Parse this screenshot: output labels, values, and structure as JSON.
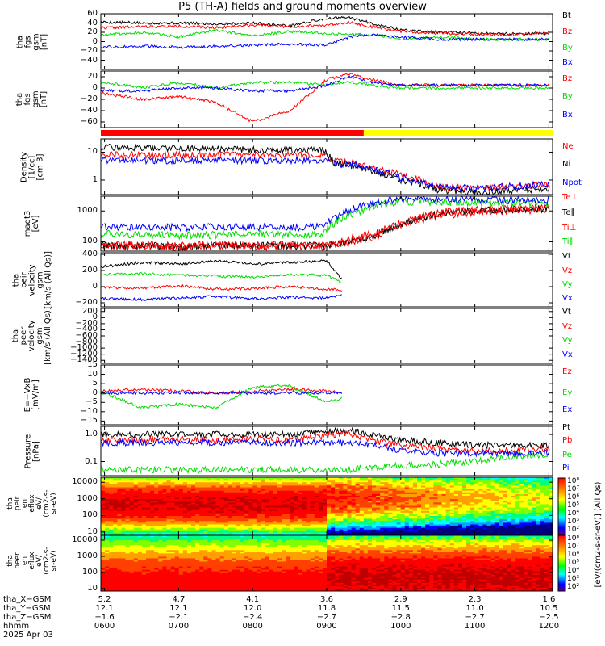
{
  "title": "P5 (TH-A) fields and ground moments overview",
  "chart_data": [
    {
      "type": "line",
      "ylabel": "tha\nfgs\ngsm\n[nT]",
      "ylim": [
        -60,
        60
      ],
      "yticks": [
        "60",
        "40",
        "20",
        "0",
        "−20",
        "−40"
      ],
      "ytick_values": [
        60,
        40,
        20,
        0,
        -20,
        -40
      ],
      "series": [
        {
          "name": "Bt",
          "color": "#000000",
          "x": [
            6.0,
            6.5,
            7.0,
            7.5,
            8.0,
            8.5,
            9.0,
            9.3,
            9.6,
            10.0,
            10.5,
            11.0,
            11.5,
            12.0
          ],
          "values": [
            42,
            40,
            40,
            38,
            40,
            34,
            50,
            52,
            40,
            25,
            20,
            18,
            17,
            18
          ]
        },
        {
          "name": "Bz",
          "color": "#ff0000",
          "x": [
            6.0,
            6.5,
            7.0,
            7.5,
            8.0,
            8.5,
            9.0,
            9.3,
            9.6,
            10.0,
            10.5,
            11.0,
            11.5,
            12.0
          ],
          "values": [
            30,
            32,
            33,
            30,
            36,
            32,
            36,
            42,
            32,
            22,
            18,
            16,
            15,
            18
          ]
        },
        {
          "name": "By",
          "color": "#00dd00",
          "x": [
            6.0,
            6.5,
            7.0,
            7.5,
            8.0,
            8.5,
            9.0,
            9.3,
            9.6,
            10.0,
            10.5,
            11.0,
            11.5,
            12.0
          ],
          "values": [
            15,
            20,
            10,
            25,
            12,
            22,
            18,
            15,
            15,
            5,
            10,
            5,
            5,
            5
          ]
        },
        {
          "name": "Bx",
          "color": "#0000ff",
          "x": [
            6.0,
            6.5,
            7.0,
            7.5,
            8.0,
            8.5,
            9.0,
            9.3,
            9.6,
            10.0,
            10.5,
            11.0,
            11.5,
            12.0
          ],
          "values": [
            -12,
            -10,
            -12,
            -10,
            -8,
            -5,
            -8,
            10,
            15,
            10,
            5,
            5,
            5,
            5
          ]
        }
      ]
    },
    {
      "type": "line",
      "ylabel": "tha\nfgs\ngsm\n[nT]",
      "ylim": [
        -70,
        30
      ],
      "yticks": [
        "20",
        "0",
        "−20",
        "−40",
        "−60"
      ],
      "ytick_values": [
        20,
        0,
        -20,
        -40,
        -60
      ],
      "series": [
        {
          "name": "Bz",
          "color": "#ff0000",
          "x": [
            6.0,
            6.5,
            7.0,
            7.5,
            8.0,
            8.5,
            9.0,
            9.3,
            9.6,
            10.0,
            10.5,
            11.0,
            11.5,
            12.0
          ],
          "values": [
            -10,
            -20,
            -15,
            -25,
            -60,
            -40,
            15,
            25,
            15,
            5,
            5,
            5,
            5,
            5
          ]
        },
        {
          "name": "By",
          "color": "#00dd00",
          "x": [
            6.0,
            6.5,
            7.0,
            7.5,
            8.0,
            8.5,
            9.0,
            9.3,
            9.6,
            10.0,
            10.5,
            11.0,
            11.5,
            12.0
          ],
          "values": [
            10,
            0,
            10,
            0,
            10,
            10,
            5,
            10,
            5,
            0,
            0,
            0,
            0,
            0
          ]
        },
        {
          "name": "Bx",
          "color": "#0000ff",
          "x": [
            6.0,
            6.5,
            7.0,
            7.5,
            8.0,
            8.5,
            9.0,
            9.3,
            9.6,
            10.0,
            10.5,
            11.0,
            11.5,
            12.0
          ],
          "values": [
            -5,
            -5,
            0,
            0,
            -5,
            -5,
            5,
            20,
            10,
            5,
            5,
            5,
            5,
            5
          ]
        }
      ]
    },
    {
      "type": "line",
      "ylabel": "Density\n[1/cc]\n[cm-3]",
      "ylog": true,
      "ylim": [
        0.3,
        30
      ],
      "yticks": [
        "10",
        "1"
      ],
      "ytick_values": [
        10,
        1
      ],
      "series": [
        {
          "name": "Ne",
          "color": "#ff0000",
          "x": [
            6.0,
            6.5,
            7.0,
            7.5,
            8.0,
            8.5,
            8.95,
            9.1,
            9.4,
            9.7,
            10.0,
            10.5,
            11.0,
            11.5,
            12.0
          ],
          "values": [
            8,
            8,
            8,
            8,
            8,
            8,
            8,
            5,
            4,
            2.5,
            1.5,
            0.6,
            0.5,
            0.6,
            0.7
          ]
        },
        {
          "name": "Ni",
          "color": "#000000",
          "x": [
            6.0,
            6.5,
            7.0,
            7.5,
            8.0,
            8.5,
            8.95,
            9.1,
            9.4,
            9.7,
            10.0,
            10.5,
            11.0,
            11.5,
            12.0
          ],
          "values": [
            15,
            14,
            14,
            13,
            12,
            12,
            12,
            4,
            3,
            1.8,
            1.0,
            0.45,
            0.35,
            0.4,
            0.5
          ]
        },
        {
          "name": "Npot",
          "color": "#0000ff",
          "x": [
            6.0,
            6.5,
            7.0,
            7.5,
            8.0,
            8.5,
            8.95,
            9.1,
            9.4,
            9.7,
            10.0,
            10.5,
            11.0,
            11.5,
            12.0
          ],
          "values": [
            5,
            5,
            5,
            5,
            5,
            5,
            5,
            4,
            3.5,
            2,
            1.2,
            0.6,
            0.5,
            0.6,
            0.7
          ]
        }
      ]
    },
    {
      "type": "line",
      "ylabel": "magt3\n[eV]",
      "ylog": true,
      "ylim": [
        50,
        3000
      ],
      "yticks": [
        "1000",
        "100"
      ],
      "ytick_values": [
        1000,
        100
      ],
      "series": [
        {
          "name": "Te⊥",
          "color": "#ff0000",
          "x": [
            6.0,
            6.5,
            7.0,
            7.5,
            8.0,
            8.5,
            8.95,
            9.3,
            9.7,
            10.0,
            10.5,
            11.0,
            11.5,
            12.0
          ],
          "values": [
            70,
            70,
            65,
            70,
            70,
            70,
            70,
            90,
            150,
            300,
            700,
            900,
            1000,
            1100
          ]
        },
        {
          "name": "Te∥",
          "color": "#000000",
          "x": [
            6.0,
            6.5,
            7.0,
            7.5,
            8.0,
            8.5,
            8.95,
            9.3,
            9.7,
            10.0,
            10.5,
            11.0,
            11.5,
            12.0
          ],
          "values": [
            75,
            75,
            70,
            75,
            75,
            75,
            75,
            100,
            170,
            350,
            800,
            1000,
            1100,
            1200
          ]
        },
        {
          "name": "Ti⊥",
          "color": "#ff0000",
          "x": [
            6.0,
            6.5,
            7.0,
            7.5,
            8.0,
            8.5,
            8.95,
            9.3,
            9.7,
            10.0,
            10.5,
            11.0,
            11.5,
            12.0
          ],
          "values": [
            80,
            80,
            75,
            80,
            80,
            80,
            80,
            120,
            200,
            400,
            900,
            1100,
            1200,
            1300
          ]
        },
        {
          "name": "Ti∥",
          "color": "#00dd00",
          "x": [
            6.0,
            6.5,
            7.0,
            7.5,
            8.0,
            8.5,
            8.95,
            9.3,
            9.7,
            10.0,
            10.5,
            11.0,
            11.5,
            12.0
          ],
          "values": [
            180,
            170,
            160,
            170,
            180,
            170,
            180,
            700,
            1500,
            2000,
            2000,
            1800,
            1800,
            1800
          ]
        },
        {
          "name": "",
          "color": "#0000ff",
          "x": [
            6.0,
            6.5,
            7.0,
            7.5,
            8.0,
            8.5,
            8.95,
            9.3,
            9.7,
            10.0,
            10.5,
            11.0,
            11.5,
            12.0
          ],
          "values": [
            300,
            300,
            300,
            300,
            300,
            300,
            300,
            1000,
            2000,
            2500,
            2500,
            2200,
            2200,
            2200
          ]
        }
      ]
    },
    {
      "type": "line",
      "ylabel": "tha\npeir\nvelocity\ngsm\n[km/s (All Qs)]",
      "ylim": [
        -250,
        420
      ],
      "yticks": [
        "400",
        "200",
        "0",
        "−200"
      ],
      "ytick_values": [
        400,
        200,
        0,
        -200
      ],
      "series": [
        {
          "name": "Vt",
          "color": "#000000",
          "x": [
            6.0,
            6.5,
            7.0,
            7.5,
            8.0,
            8.5,
            9.0,
            9.2
          ],
          "values": [
            250,
            300,
            280,
            320,
            280,
            300,
            320,
            100
          ]
        },
        {
          "name": "Vz",
          "color": "#ff0000",
          "x": [
            6.0,
            6.5,
            7.0,
            7.5,
            8.0,
            8.5,
            9.0,
            9.2
          ],
          "values": [
            -10,
            -20,
            10,
            -30,
            -20,
            0,
            -30,
            -40
          ]
        },
        {
          "name": "Vy",
          "color": "#00dd00",
          "x": [
            6.0,
            6.5,
            7.0,
            7.5,
            8.0,
            8.5,
            9.0,
            9.2
          ],
          "values": [
            150,
            160,
            140,
            130,
            120,
            150,
            140,
            50
          ]
        },
        {
          "name": "Vx",
          "color": "#0000ff",
          "x": [
            6.0,
            6.5,
            7.0,
            7.5,
            8.0,
            8.5,
            9.0,
            9.2
          ],
          "values": [
            -150,
            -160,
            -140,
            -120,
            -150,
            -130,
            -140,
            -100
          ]
        }
      ]
    },
    {
      "type": "line",
      "ylabel": "tha\npeer\nvelocity\ngsm\n[km/s (All Qs)]",
      "ylim": [
        -1500,
        300
      ],
      "yticks": [
        "200",
        "0",
        "−200",
        "−400",
        "−600",
        "−800",
        "−1000",
        "−1200",
        "−1400"
      ],
      "ytick_values": [
        200,
        0,
        -200,
        -400,
        -600,
        -800,
        -1000,
        -1200,
        -1400
      ],
      "series": [
        {
          "name": "Vt",
          "color": "#000000",
          "x": [],
          "values": []
        },
        {
          "name": "Vz",
          "color": "#ff0000",
          "x": [],
          "values": []
        },
        {
          "name": "Vy",
          "color": "#00dd00",
          "x": [],
          "values": []
        },
        {
          "name": "Vx",
          "color": "#0000ff",
          "x": [],
          "values": []
        }
      ]
    },
    {
      "type": "line",
      "ylabel": "E=−VxB\n[mV/m]",
      "ylim": [
        -17,
        15
      ],
      "yticks": [
        "15",
        "10",
        "5",
        "0",
        "−5",
        "−10",
        "−15"
      ],
      "ytick_values": [
        15,
        10,
        5,
        0,
        -5,
        -10,
        -15
      ],
      "series": [
        {
          "name": "Ez",
          "color": "#ff0000",
          "x": [
            6.0,
            6.5,
            7.0,
            7.5,
            8.0,
            8.5,
            9.0,
            9.2
          ],
          "values": [
            1,
            2,
            1,
            0,
            1,
            2,
            1,
            0
          ]
        },
        {
          "name": "Ey",
          "color": "#00dd00",
          "x": [
            6.0,
            6.5,
            7.0,
            7.5,
            8.0,
            8.5,
            9.0,
            9.2
          ],
          "values": [
            0,
            -8,
            -6,
            -8,
            3,
            4,
            -5,
            -3
          ]
        },
        {
          "name": "Ex",
          "color": "#0000ff",
          "x": [
            6.0,
            6.5,
            7.0,
            7.5,
            8.0,
            8.5,
            9.0,
            9.2
          ],
          "values": [
            0,
            0,
            0,
            0,
            0,
            0,
            0,
            0
          ]
        }
      ]
    },
    {
      "type": "line",
      "ylabel": "Pressure\n[nPa]",
      "ylog": true,
      "ylim": [
        0.03,
        2
      ],
      "yticks": [
        "1.0",
        "0.1"
      ],
      "ytick_values": [
        1.0,
        0.1
      ],
      "series": [
        {
          "name": "Pt",
          "color": "#000000",
          "x": [
            6.0,
            6.5,
            7.0,
            7.5,
            8.0,
            8.5,
            9.0,
            9.3,
            9.6,
            10.0,
            10.5,
            11.0,
            11.5,
            12.0
          ],
          "values": [
            1.0,
            1.0,
            1.0,
            1.0,
            1.0,
            1.0,
            1.3,
            1.5,
            1.0,
            0.6,
            0.5,
            0.4,
            0.4,
            0.4
          ]
        },
        {
          "name": "Pb",
          "color": "#ff0000",
          "x": [
            6.0,
            6.5,
            7.0,
            7.5,
            8.0,
            8.5,
            9.0,
            9.3,
            9.6,
            10.0,
            10.5,
            11.0,
            11.5,
            12.0
          ],
          "values": [
            0.6,
            0.65,
            0.7,
            0.6,
            0.7,
            0.6,
            0.9,
            1.1,
            0.6,
            0.4,
            0.3,
            0.25,
            0.25,
            0.3
          ]
        },
        {
          "name": "Pe",
          "color": "#00dd00",
          "x": [
            6.0,
            6.5,
            7.0,
            7.5,
            8.0,
            8.5,
            9.0,
            9.3,
            9.6,
            10.0,
            10.5,
            11.0,
            11.5,
            12.0
          ],
          "values": [
            0.05,
            0.05,
            0.05,
            0.05,
            0.05,
            0.05,
            0.05,
            0.05,
            0.06,
            0.07,
            0.08,
            0.1,
            0.15,
            0.18
          ]
        },
        {
          "name": "Pi",
          "color": "#0000ff",
          "x": [
            6.0,
            6.5,
            7.0,
            7.5,
            8.0,
            8.5,
            9.0,
            9.3,
            9.6,
            10.0,
            10.5,
            11.0,
            11.5,
            12.0
          ],
          "values": [
            0.5,
            0.5,
            0.5,
            0.5,
            0.5,
            0.5,
            0.5,
            0.5,
            0.4,
            0.25,
            0.2,
            0.2,
            0.2,
            0.2
          ]
        }
      ]
    },
    {
      "type": "heatmap",
      "ylabel": "tha\npeir\nen\neflux\neV/\n(cm2-s-\nsr-eV)",
      "ylog": true,
      "ylim": [
        7,
        20000
      ],
      "yticks": [
        "10000",
        "1000",
        "100",
        "10"
      ],
      "ytick_values": [
        10000,
        1000,
        100,
        10
      ]
    },
    {
      "type": "heatmap",
      "ylabel": "tha\npeer\nen\neflux\neV/\n(cm2-s-\nsr-eV)",
      "ylog": true,
      "ylim": [
        7,
        20000
      ],
      "yticks": [
        "10000",
        "1000",
        "100",
        "10"
      ],
      "ytick_values": [
        10000,
        1000,
        100,
        10
      ]
    }
  ],
  "colorbar": {
    "label": "[eV/(cm2-s-sr-eV)] (All Qs)",
    "ticks": [
      "10⁸",
      "10⁷",
      "10⁶",
      "10⁵",
      "10⁴",
      "10³",
      "10²"
    ],
    "ticks_lower": [
      "10⁸",
      "10⁷",
      "10⁶",
      "10⁵",
      "10⁴",
      "10³",
      "10²"
    ]
  },
  "mode_bar": {
    "red_until": 9.5,
    "color_a": "#ff0000",
    "color_b": "#ffff00"
  },
  "x_axis": {
    "range": [
      5.95,
      12.05
    ],
    "ticks": [
      6,
      7,
      8,
      9,
      10,
      11,
      12
    ],
    "rows": [
      {
        "label": "tha_X−GSM",
        "values": [
          "5.2",
          "4.7",
          "4.1",
          "3.6",
          "2.9",
          "2.3",
          "1.6"
        ]
      },
      {
        "label": "tha_Y−GSM",
        "values": [
          "12.1",
          "12.1",
          "12.0",
          "11.8",
          "11.5",
          "11.0",
          "10.5"
        ]
      },
      {
        "label": "tha_Z−GSM",
        "values": [
          "−1.6",
          "−2.1",
          "−2.4",
          "−2.7",
          "−2.8",
          "−2.7",
          "−2.5"
        ]
      },
      {
        "label": "hhmm",
        "values": [
          "0600",
          "0700",
          "0800",
          "0900",
          "1000",
          "1100",
          "1200"
        ]
      }
    ],
    "date": "2025 Apr 03"
  }
}
